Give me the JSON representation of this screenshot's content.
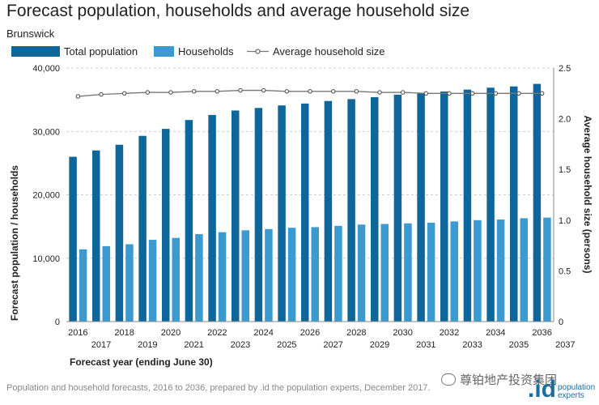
{
  "header": {
    "title": "Forecast population, households and average household size",
    "subtitle": "Brunswick"
  },
  "footer": {
    "source": "Population and household forecasts, 2016 to 2036, prepared by .id the population experts, December 2017."
  },
  "watermark": {
    "text": "尊铂地产投资集团",
    "logo_mark": ".id",
    "logo_line1": "population",
    "logo_line2": "experts"
  },
  "colors": {
    "population": "#0f669a",
    "households": "#3b9bd1",
    "avg_line": "#777777",
    "grid": "#cccccc",
    "axis": "#888888"
  },
  "chart_data": {
    "type": "bar",
    "title": "Forecast population, households and average household size",
    "subtitle": "Brunswick",
    "xlabel": "Forecast year (ending June 30)",
    "ylabel": "Forecast population / households",
    "y2label": "Average household size (persons)",
    "categories": [
      "2016",
      "2017",
      "2018",
      "2019",
      "2020",
      "2021",
      "2022",
      "2023",
      "2024",
      "2025",
      "2026",
      "2027",
      "2028",
      "2029",
      "2030",
      "2031",
      "2032",
      "2033",
      "2034",
      "2035",
      "2036"
    ],
    "x_tick_labels_top": [
      "2016",
      "2018",
      "2020",
      "2022",
      "2024",
      "2026",
      "2028",
      "2030",
      "2032",
      "2034",
      "2036"
    ],
    "x_tick_labels_bottom": [
      "2017",
      "2019",
      "2021",
      "2023",
      "2025",
      "2027",
      "2029",
      "2031",
      "2033",
      "2035",
      "2037"
    ],
    "ylim": [
      0,
      40000
    ],
    "y_ticks": [
      0,
      10000,
      20000,
      30000,
      40000
    ],
    "y_tick_labels": [
      "0",
      "10,000",
      "20,000",
      "30,000",
      "40,000"
    ],
    "y2lim": [
      0,
      2.5
    ],
    "y2_ticks": [
      0,
      0.5,
      1.0,
      1.5,
      2.0,
      2.5
    ],
    "y2_tick_labels": [
      "0",
      "0.5",
      "1.0",
      "1.5",
      "2.0",
      "2.5"
    ],
    "grid": true,
    "legend_position": "top-left",
    "series": [
      {
        "name": "Total population",
        "type": "bar",
        "axis": "left",
        "values": [
          26000,
          27000,
          27900,
          29300,
          30400,
          31800,
          32600,
          33300,
          33700,
          34100,
          34400,
          34800,
          35100,
          35400,
          35800,
          36100,
          36300,
          36600,
          36900,
          37100,
          37500
        ]
      },
      {
        "name": "Households",
        "type": "bar",
        "axis": "left",
        "values": [
          11400,
          11900,
          12200,
          12900,
          13200,
          13800,
          14100,
          14400,
          14600,
          14800,
          14900,
          15100,
          15300,
          15400,
          15500,
          15600,
          15800,
          16000,
          16100,
          16300,
          16400
        ]
      },
      {
        "name": "Average household size",
        "type": "line",
        "axis": "right",
        "values": [
          2.22,
          2.24,
          2.25,
          2.26,
          2.26,
          2.27,
          2.27,
          2.28,
          2.28,
          2.27,
          2.27,
          2.27,
          2.27,
          2.26,
          2.26,
          2.25,
          2.25,
          2.25,
          2.25,
          2.25,
          2.25
        ]
      }
    ]
  }
}
